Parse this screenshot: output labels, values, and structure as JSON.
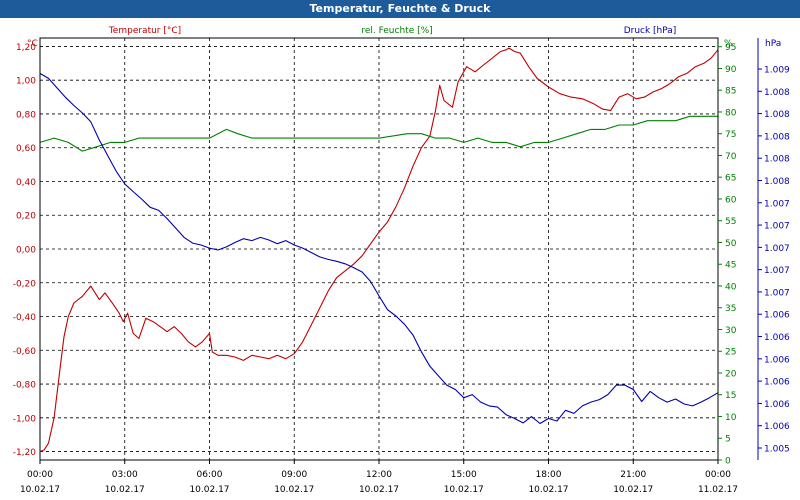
{
  "window": {
    "title": "Temperatur, Feuchte & Druck"
  },
  "colors": {
    "temp": "#c00000",
    "hum": "#008000",
    "press": "#0000b0",
    "titlebar": "#1d5b9a"
  },
  "chart_data": {
    "type": "line",
    "title": "Temperatur, Feuchte & Druck",
    "grid": true,
    "x": {
      "unit": "hours since 10.02.17 00:00",
      "range": [
        0,
        24
      ],
      "ticks": [
        {
          "value": 0,
          "time": "00:00",
          "date": "10.02.17"
        },
        {
          "value": 3,
          "time": "03:00",
          "date": "10.02.17"
        },
        {
          "value": 6,
          "time": "06:00",
          "date": "10.02.17"
        },
        {
          "value": 9,
          "time": "09:00",
          "date": "10.02.17"
        },
        {
          "value": 12,
          "time": "12:00",
          "date": "10.02.17"
        },
        {
          "value": 15,
          "time": "15:00",
          "date": "10.02.17"
        },
        {
          "value": 18,
          "time": "18:00",
          "date": "10.02.17"
        },
        {
          "value": 21,
          "time": "21:00",
          "date": "10.02.17"
        },
        {
          "value": 24,
          "time": "00:00",
          "date": "11.02.17"
        }
      ]
    },
    "axes": {
      "temp": {
        "unit": "°C",
        "range": [
          -1.25,
          1.25
        ],
        "ticks": [
          "1,20",
          "1,00",
          "0,80",
          "0,60",
          "0,40",
          "0,20",
          "0,00",
          "-0,20",
          "-0,40",
          "-0,60",
          "-0,80",
          "-1,00",
          "-1,20"
        ]
      },
      "hum": {
        "unit": "%",
        "range": [
          0,
          97
        ],
        "ticks": [
          "95",
          "90",
          "85",
          "80",
          "75",
          "70",
          "65",
          "60",
          "55",
          "50",
          "45",
          "40",
          "35",
          "30",
          "25",
          "20",
          "15",
          "10",
          "5",
          "0"
        ]
      },
      "press": {
        "unit": "hPa",
        "ticks": [
          "1.009",
          "1.008",
          "1.008",
          "1.008",
          "1.008",
          "1.008",
          "1.007",
          "1.007",
          "1.007",
          "1.007",
          "1.007",
          "1.006",
          "1.006",
          "1.006",
          "1.006",
          "1.006",
          "1.006",
          "1.005"
        ]
      }
    },
    "series": [
      {
        "name": "Temperatur [°C]",
        "axis": "temp",
        "x": [
          0,
          0.15,
          0.3,
          0.5,
          0.7,
          0.85,
          1.0,
          1.2,
          1.5,
          1.8,
          2.1,
          2.3,
          2.6,
          2.8,
          2.95,
          3.1,
          3.3,
          3.5,
          3.75,
          4.0,
          4.25,
          4.5,
          4.75,
          5.0,
          5.25,
          5.5,
          5.75,
          6.0,
          6.1,
          6.3,
          6.6,
          6.9,
          7.2,
          7.5,
          7.8,
          8.1,
          8.4,
          8.7,
          9.0,
          9.3,
          9.6,
          9.9,
          10.2,
          10.5,
          10.8,
          11.1,
          11.4,
          11.7,
          12.0,
          12.3,
          12.6,
          12.9,
          13.2,
          13.5,
          13.8,
          14.0,
          14.15,
          14.3,
          14.6,
          14.8,
          15.1,
          15.4,
          15.7,
          16.0,
          16.3,
          16.5,
          16.6,
          16.8,
          17.0,
          17.3,
          17.6,
          18.0,
          18.4,
          18.8,
          19.2,
          19.6,
          19.9,
          20.2,
          20.5,
          20.8,
          21.1,
          21.4,
          21.7,
          22.0,
          22.3,
          22.6,
          22.9,
          23.2,
          23.5,
          23.75,
          24.0
        ],
        "values": [
          -1.2,
          -1.19,
          -1.15,
          -1.0,
          -0.72,
          -0.52,
          -0.4,
          -0.32,
          -0.28,
          -0.22,
          -0.3,
          -0.26,
          -0.33,
          -0.38,
          -0.43,
          -0.38,
          -0.5,
          -0.53,
          -0.41,
          -0.43,
          -0.46,
          -0.49,
          -0.46,
          -0.5,
          -0.55,
          -0.58,
          -0.55,
          -0.5,
          -0.61,
          -0.63,
          -0.63,
          -0.64,
          -0.66,
          -0.63,
          -0.64,
          -0.65,
          -0.63,
          -0.65,
          -0.62,
          -0.55,
          -0.45,
          -0.35,
          -0.25,
          -0.17,
          -0.13,
          -0.09,
          -0.04,
          0.03,
          0.1,
          0.16,
          0.25,
          0.36,
          0.49,
          0.6,
          0.67,
          0.82,
          0.97,
          0.88,
          0.84,
          0.99,
          1.08,
          1.05,
          1.09,
          1.13,
          1.17,
          1.18,
          1.19,
          1.17,
          1.16,
          1.08,
          1.01,
          0.96,
          0.92,
          0.9,
          0.89,
          0.86,
          0.83,
          0.82,
          0.9,
          0.92,
          0.89,
          0.9,
          0.93,
          0.95,
          0.98,
          1.02,
          1.04,
          1.08,
          1.1,
          1.13,
          1.18
        ]
      },
      {
        "name": "rel. Feuchte [%]",
        "axis": "hum",
        "x": [
          0,
          0.5,
          1.0,
          1.5,
          2.0,
          2.5,
          3.0,
          3.5,
          4.0,
          4.5,
          5.0,
          5.5,
          6.0,
          6.3,
          6.6,
          7.0,
          7.5,
          8.0,
          9.0,
          10.0,
          11.0,
          12.0,
          13.0,
          13.5,
          14.0,
          14.5,
          15.0,
          15.5,
          16.0,
          16.5,
          17.0,
          17.5,
          18.0,
          18.5,
          19.0,
          19.5,
          20.0,
          20.5,
          21.0,
          21.5,
          22.0,
          22.5,
          23.0,
          23.5,
          24.0
        ],
        "values": [
          73,
          74,
          73,
          71,
          72,
          73,
          73,
          74,
          74,
          74,
          74,
          74,
          74,
          75,
          76,
          75,
          74,
          74,
          74,
          74,
          74,
          74,
          75,
          75,
          74,
          74,
          73,
          74,
          73,
          73,
          72,
          73,
          73,
          74,
          75,
          76,
          76,
          77,
          77,
          78,
          78,
          78,
          79,
          79,
          79
        ]
      },
      {
        "name": "Druck [hPa]",
        "axis": "press",
        "x": [
          0,
          0.3,
          0.6,
          0.9,
          1.2,
          1.5,
          1.8,
          2.1,
          2.4,
          2.7,
          3.0,
          3.3,
          3.6,
          3.9,
          4.2,
          4.5,
          4.8,
          5.1,
          5.4,
          5.7,
          6.0,
          6.3,
          6.6,
          6.9,
          7.2,
          7.5,
          7.8,
          8.1,
          8.4,
          8.7,
          9.0,
          9.3,
          9.6,
          9.9,
          10.2,
          10.5,
          10.8,
          11.1,
          11.4,
          11.7,
          12.0,
          12.3,
          12.6,
          12.9,
          13.2,
          13.5,
          13.8,
          14.1,
          14.4,
          14.7,
          15.0,
          15.3,
          15.6,
          15.9,
          16.2,
          16.5,
          16.8,
          17.1,
          17.4,
          17.7,
          18.0,
          18.3,
          18.6,
          18.9,
          19.2,
          19.5,
          19.8,
          20.1,
          20.4,
          20.7,
          21.0,
          21.3,
          21.6,
          21.9,
          22.2,
          22.5,
          22.8,
          23.1,
          23.4,
          23.7,
          24.0
        ],
        "values": [
          1.00921,
          1.00913,
          1.00898,
          1.00883,
          1.0087,
          1.00858,
          1.00844,
          1.00815,
          1.0079,
          1.00765,
          1.00745,
          1.00733,
          1.00721,
          1.00708,
          1.00703,
          1.0069,
          1.00675,
          1.0066,
          1.00651,
          1.00648,
          1.00643,
          1.0064,
          1.00645,
          1.00652,
          1.00658,
          1.00655,
          1.0066,
          1.00656,
          1.0065,
          1.00655,
          1.00648,
          1.00643,
          1.00636,
          1.00629,
          1.00625,
          1.00622,
          1.00618,
          1.00612,
          1.00605,
          1.0059,
          1.00567,
          1.00545,
          1.00535,
          1.00522,
          1.00505,
          1.00478,
          1.00455,
          1.0044,
          1.00425,
          1.00418,
          1.00405,
          1.0041,
          1.00398,
          1.00392,
          1.0039,
          1.00378,
          1.00372,
          1.00365,
          1.00375,
          1.00364,
          1.00372,
          1.00368,
          1.00385,
          1.0038,
          1.00392,
          1.00398,
          1.00402,
          1.0041,
          1.00425,
          1.00425,
          1.00418,
          1.00399,
          1.00415,
          1.00405,
          1.00398,
          1.00403,
          1.00395,
          1.00392,
          1.00398,
          1.00405,
          1.00413
        ]
      }
    ]
  }
}
